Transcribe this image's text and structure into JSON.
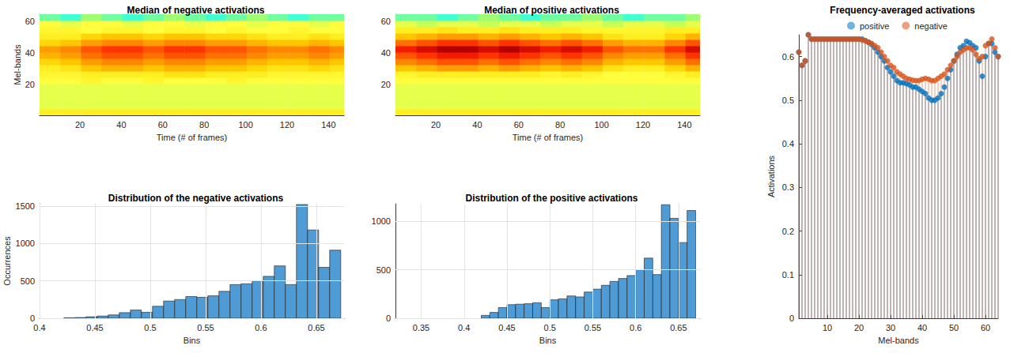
{
  "chart_data": [
    {
      "type": "heatmap",
      "title": "Median of negative activations",
      "xlabel": "Time (# of frames)",
      "ylabel": "Mel-bands",
      "xlim": [
        0.5,
        147.5
      ],
      "xticks": [
        20,
        40,
        60,
        80,
        100,
        120,
        140
      ],
      "ylim": [
        0.5,
        64.5
      ],
      "yticks": [
        20,
        40,
        60
      ],
      "grid": false,
      "x_edges": [
        0.5,
        10.5,
        20.5,
        30.5,
        40.5,
        50.5,
        60.5,
        70.5,
        80.5,
        90.5,
        100.5,
        110.5,
        120.5,
        130.5,
        140.5,
        147.5
      ],
      "y_edges": [
        0.5,
        4.5,
        8.5,
        12.5,
        16.5,
        20.5,
        24.5,
        28.5,
        32.5,
        36.5,
        40.5,
        44.5,
        48.5,
        52.5,
        56.5,
        60.5,
        64.5
      ],
      "cells": [
        [
          0.6,
          0.6,
          0.6,
          0.6,
          0.6,
          0.6,
          0.6,
          0.6,
          0.6,
          0.6,
          0.6,
          0.6,
          0.6,
          0.6,
          0.6
        ],
        [
          0.63,
          0.63,
          0.63,
          0.63,
          0.63,
          0.63,
          0.63,
          0.63,
          0.63,
          0.63,
          0.63,
          0.63,
          0.63,
          0.63,
          0.63
        ],
        [
          0.63,
          0.63,
          0.63,
          0.63,
          0.63,
          0.63,
          0.63,
          0.63,
          0.63,
          0.63,
          0.63,
          0.63,
          0.63,
          0.63,
          0.63
        ],
        [
          0.63,
          0.63,
          0.63,
          0.63,
          0.63,
          0.63,
          0.63,
          0.63,
          0.63,
          0.63,
          0.63,
          0.63,
          0.63,
          0.63,
          0.63
        ],
        [
          0.63,
          0.63,
          0.63,
          0.63,
          0.63,
          0.63,
          0.63,
          0.63,
          0.63,
          0.63,
          0.63,
          0.63,
          0.63,
          0.63,
          0.63
        ],
        [
          0.62,
          0.62,
          0.61,
          0.62,
          0.62,
          0.61,
          0.62,
          0.62,
          0.62,
          0.61,
          0.62,
          0.62,
          0.62,
          0.62,
          0.62
        ],
        [
          0.61,
          0.61,
          0.6,
          0.6,
          0.6,
          0.6,
          0.59,
          0.59,
          0.6,
          0.6,
          0.6,
          0.61,
          0.61,
          0.61,
          0.61
        ],
        [
          0.6,
          0.59,
          0.57,
          0.56,
          0.56,
          0.57,
          0.56,
          0.56,
          0.57,
          0.57,
          0.58,
          0.59,
          0.59,
          0.58,
          0.59
        ],
        [
          0.58,
          0.57,
          0.55,
          0.54,
          0.54,
          0.55,
          0.54,
          0.54,
          0.55,
          0.55,
          0.56,
          0.57,
          0.57,
          0.56,
          0.57
        ],
        [
          0.56,
          0.55,
          0.53,
          0.52,
          0.52,
          0.53,
          0.52,
          0.52,
          0.53,
          0.53,
          0.54,
          0.55,
          0.55,
          0.54,
          0.55
        ],
        [
          0.55,
          0.54,
          0.52,
          0.51,
          0.51,
          0.52,
          0.51,
          0.51,
          0.52,
          0.52,
          0.53,
          0.54,
          0.54,
          0.53,
          0.54
        ],
        [
          0.58,
          0.57,
          0.55,
          0.54,
          0.54,
          0.55,
          0.54,
          0.54,
          0.55,
          0.55,
          0.56,
          0.57,
          0.57,
          0.56,
          0.57
        ],
        [
          0.6,
          0.6,
          0.58,
          0.57,
          0.57,
          0.58,
          0.57,
          0.57,
          0.58,
          0.58,
          0.59,
          0.6,
          0.6,
          0.59,
          0.6
        ],
        [
          0.61,
          0.61,
          0.62,
          0.61,
          0.61,
          0.62,
          0.61,
          0.61,
          0.62,
          0.61,
          0.62,
          0.62,
          0.61,
          0.62,
          0.62
        ],
        [
          0.62,
          0.63,
          0.62,
          0.62,
          0.63,
          0.62,
          0.62,
          0.63,
          0.62,
          0.62,
          0.63,
          0.62,
          0.62,
          0.63,
          0.62
        ],
        [
          0.66,
          0.67,
          0.65,
          0.66,
          0.67,
          0.66,
          0.65,
          0.66,
          0.67,
          0.66,
          0.65,
          0.66,
          0.67,
          0.66,
          0.66
        ]
      ]
    },
    {
      "type": "heatmap",
      "title": "Median of positive activations",
      "xlabel": "Time (# of frames)",
      "xlim": [
        0.5,
        147.5
      ],
      "xticks": [
        20,
        40,
        60,
        80,
        100,
        120,
        140
      ],
      "ylim": [
        0.5,
        64.5
      ],
      "yticks": [
        20,
        40,
        60
      ],
      "grid": false,
      "x_edges": [
        0.5,
        10.5,
        20.5,
        30.5,
        40.5,
        50.5,
        60.5,
        70.5,
        80.5,
        90.5,
        100.5,
        110.5,
        120.5,
        130.5,
        140.5,
        147.5
      ],
      "y_edges": [
        0.5,
        4.5,
        8.5,
        12.5,
        16.5,
        20.5,
        24.5,
        28.5,
        32.5,
        36.5,
        40.5,
        44.5,
        48.5,
        52.5,
        56.5,
        60.5,
        64.5
      ],
      "cells": [
        [
          0.6,
          0.6,
          0.6,
          0.6,
          0.6,
          0.6,
          0.6,
          0.6,
          0.6,
          0.6,
          0.6,
          0.6,
          0.6,
          0.6,
          0.6
        ],
        [
          0.63,
          0.63,
          0.63,
          0.63,
          0.63,
          0.63,
          0.63,
          0.63,
          0.63,
          0.63,
          0.63,
          0.63,
          0.63,
          0.63,
          0.63
        ],
        [
          0.63,
          0.63,
          0.63,
          0.63,
          0.63,
          0.63,
          0.63,
          0.63,
          0.63,
          0.63,
          0.63,
          0.63,
          0.63,
          0.63,
          0.63
        ],
        [
          0.63,
          0.63,
          0.63,
          0.63,
          0.63,
          0.63,
          0.63,
          0.63,
          0.63,
          0.63,
          0.63,
          0.63,
          0.63,
          0.63,
          0.63
        ],
        [
          0.63,
          0.63,
          0.63,
          0.63,
          0.63,
          0.63,
          0.63,
          0.63,
          0.63,
          0.63,
          0.63,
          0.63,
          0.63,
          0.63,
          0.63
        ],
        [
          0.62,
          0.62,
          0.62,
          0.62,
          0.62,
          0.62,
          0.62,
          0.62,
          0.62,
          0.62,
          0.62,
          0.62,
          0.62,
          0.62,
          0.62
        ],
        [
          0.61,
          0.6,
          0.6,
          0.6,
          0.6,
          0.6,
          0.6,
          0.61,
          0.6,
          0.61,
          0.62,
          0.62,
          0.62,
          0.61,
          0.6
        ],
        [
          0.57,
          0.56,
          0.55,
          0.55,
          0.56,
          0.55,
          0.56,
          0.57,
          0.56,
          0.57,
          0.59,
          0.6,
          0.6,
          0.58,
          0.56
        ],
        [
          0.54,
          0.53,
          0.52,
          0.52,
          0.53,
          0.52,
          0.53,
          0.54,
          0.53,
          0.54,
          0.56,
          0.57,
          0.57,
          0.55,
          0.53
        ],
        [
          0.52,
          0.51,
          0.5,
          0.5,
          0.51,
          0.5,
          0.51,
          0.52,
          0.51,
          0.52,
          0.54,
          0.55,
          0.55,
          0.53,
          0.51
        ],
        [
          0.5,
          0.49,
          0.48,
          0.48,
          0.49,
          0.48,
          0.49,
          0.5,
          0.49,
          0.5,
          0.52,
          0.53,
          0.53,
          0.51,
          0.49
        ],
        [
          0.53,
          0.52,
          0.51,
          0.51,
          0.52,
          0.51,
          0.52,
          0.53,
          0.52,
          0.53,
          0.55,
          0.56,
          0.56,
          0.54,
          0.52
        ],
        [
          0.57,
          0.56,
          0.55,
          0.55,
          0.56,
          0.55,
          0.56,
          0.57,
          0.56,
          0.57,
          0.59,
          0.6,
          0.6,
          0.58,
          0.56
        ],
        [
          0.6,
          0.6,
          0.59,
          0.6,
          0.6,
          0.59,
          0.6,
          0.6,
          0.6,
          0.61,
          0.61,
          0.61,
          0.61,
          0.6,
          0.6
        ],
        [
          0.63,
          0.64,
          0.63,
          0.63,
          0.64,
          0.63,
          0.63,
          0.64,
          0.63,
          0.63,
          0.64,
          0.63,
          0.63,
          0.64,
          0.63
        ],
        [
          0.66,
          0.66,
          0.67,
          0.66,
          0.65,
          0.66,
          0.67,
          0.66,
          0.66,
          0.65,
          0.66,
          0.67,
          0.66,
          0.66,
          0.65
        ]
      ]
    },
    {
      "type": "histogram",
      "title": "Distribution of the negative activations",
      "xlabel": "Bins",
      "ylabel": "Occurrences",
      "xlim": [
        0.4,
        0.675
      ],
      "xticks": [
        0.4,
        0.45,
        0.5,
        0.55,
        0.6,
        0.65
      ],
      "ylim": [
        0,
        1530
      ],
      "yticks": [
        0,
        500,
        1000,
        1500
      ],
      "grid": true,
      "color": "#4f9bd5",
      "bins": [
        0.422,
        0.432,
        0.442,
        0.452,
        0.462,
        0.472,
        0.482,
        0.492,
        0.502,
        0.512,
        0.522,
        0.532,
        0.542,
        0.552,
        0.562,
        0.572,
        0.582,
        0.592,
        0.602,
        0.612,
        0.622,
        0.632,
        0.642,
        0.652,
        0.662,
        0.672
      ],
      "values": [
        5,
        10,
        20,
        30,
        45,
        75,
        110,
        80,
        160,
        230,
        250,
        290,
        280,
        300,
        360,
        450,
        460,
        500,
        560,
        700,
        450,
        1520,
        1180,
        680,
        910
      ]
    },
    {
      "type": "histogram",
      "title": "Distribution of the positive activations",
      "xlabel": "Bins",
      "xlim": [
        0.32,
        0.675
      ],
      "xticks": [
        0.35,
        0.4,
        0.45,
        0.5,
        0.55,
        0.6,
        0.65
      ],
      "ylim": [
        0,
        1180
      ],
      "yticks": [
        0,
        500,
        1000
      ],
      "grid": true,
      "color": "#4f9bd5",
      "bins": [
        0.42,
        0.43,
        0.44,
        0.45,
        0.46,
        0.47,
        0.48,
        0.49,
        0.5,
        0.51,
        0.52,
        0.53,
        0.54,
        0.55,
        0.56,
        0.57,
        0.58,
        0.59,
        0.6,
        0.61,
        0.62,
        0.63,
        0.64,
        0.65,
        0.66,
        0.67
      ],
      "values": [
        30,
        60,
        110,
        140,
        145,
        150,
        160,
        110,
        190,
        200,
        230,
        220,
        270,
        300,
        340,
        380,
        410,
        440,
        500,
        620,
        450,
        1170,
        1030,
        780,
        1110
      ]
    },
    {
      "type": "stem",
      "title": "Frequency-averaged activations",
      "xlabel": "Mel-bands",
      "ylabel": "Activations",
      "xlim": [
        1,
        64
      ],
      "xticks": [
        10,
        20,
        30,
        40,
        50,
        60
      ],
      "ylim": [
        0,
        0.65
      ],
      "yticks": [
        0,
        0.1,
        0.2,
        0.3,
        0.4,
        0.5,
        0.6
      ],
      "grid": false,
      "legend": "top",
      "x": [
        1,
        2,
        3,
        4,
        5,
        6,
        7,
        8,
        9,
        10,
        11,
        12,
        13,
        14,
        15,
        16,
        17,
        18,
        19,
        20,
        21,
        22,
        23,
        24,
        25,
        26,
        27,
        28,
        29,
        30,
        31,
        32,
        33,
        34,
        35,
        36,
        37,
        38,
        39,
        40,
        41,
        42,
        43,
        44,
        45,
        46,
        47,
        48,
        49,
        50,
        51,
        52,
        53,
        54,
        55,
        56,
        57,
        58,
        59,
        60,
        61,
        62,
        63,
        64
      ],
      "series": [
        {
          "name": "positive",
          "color": "#0072bd",
          "marker": "circle",
          "values": [
            0.61,
            0.58,
            0.59,
            0.65,
            0.64,
            0.64,
            0.64,
            0.64,
            0.64,
            0.64,
            0.64,
            0.64,
            0.64,
            0.64,
            0.64,
            0.64,
            0.64,
            0.64,
            0.64,
            0.64,
            0.64,
            0.637,
            0.633,
            0.628,
            0.62,
            0.61,
            0.6,
            0.59,
            0.575,
            0.565,
            0.555,
            0.545,
            0.54,
            0.54,
            0.538,
            0.535,
            0.53,
            0.53,
            0.525,
            0.52,
            0.515,
            0.505,
            0.5,
            0.5,
            0.505,
            0.515,
            0.53,
            0.55,
            0.57,
            0.59,
            0.605,
            0.62,
            0.625,
            0.635,
            0.632,
            0.625,
            0.62,
            0.59,
            0.555,
            0.6,
            0.63,
            0.63,
            0.61,
            0.6
          ]
        },
        {
          "name": "negative",
          "color": "#d95319",
          "marker": "circle",
          "values": [
            0.61,
            0.58,
            0.59,
            0.65,
            0.64,
            0.64,
            0.64,
            0.64,
            0.64,
            0.64,
            0.64,
            0.64,
            0.64,
            0.64,
            0.64,
            0.64,
            0.64,
            0.64,
            0.64,
            0.64,
            0.638,
            0.636,
            0.633,
            0.63,
            0.625,
            0.62,
            0.61,
            0.6,
            0.59,
            0.58,
            0.575,
            0.565,
            0.56,
            0.555,
            0.55,
            0.548,
            0.546,
            0.545,
            0.545,
            0.548,
            0.55,
            0.548,
            0.545,
            0.545,
            0.55,
            0.555,
            0.56,
            0.57,
            0.58,
            0.59,
            0.6,
            0.61,
            0.615,
            0.62,
            0.62,
            0.615,
            0.605,
            0.595,
            0.6,
            0.625,
            0.63,
            0.64,
            0.62,
            0.6
          ]
        }
      ]
    }
  ]
}
